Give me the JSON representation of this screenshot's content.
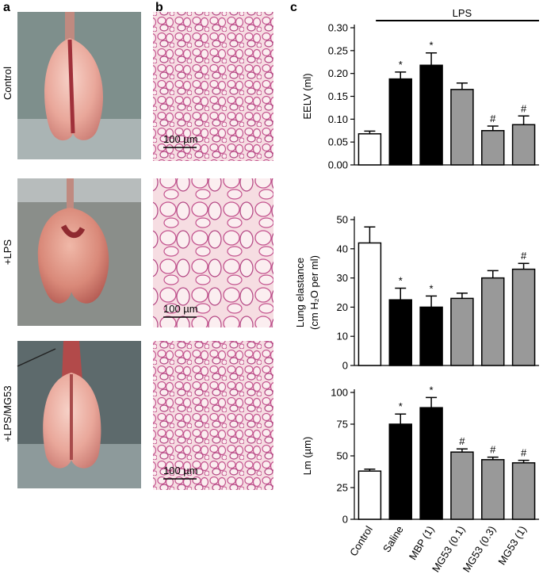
{
  "panel_labels": [
    "a",
    "b",
    "c"
  ],
  "row_labels": [
    "Control",
    "+LPS",
    "+LPS/MG53"
  ],
  "scale_bars": [
    "100 µm",
    "100 µm",
    "100 µm"
  ],
  "chart_data": [
    {
      "type": "bar",
      "annotation": "LPS",
      "y_label": [
        "EELV (ml)"
      ],
      "categories": [
        null,
        null,
        null,
        null,
        null,
        null
      ],
      "values": [
        0.068,
        0.188,
        0.218,
        0.165,
        0.075,
        0.088
      ],
      "errors": [
        0.006,
        0.015,
        0.027,
        0.014,
        0.01,
        0.019
      ],
      "colors": [
        "#ffffff",
        "#000000",
        "#000000",
        "#999999",
        "#999999",
        "#999999"
      ],
      "markers": [
        null,
        "*",
        "*",
        null,
        "#",
        "#"
      ],
      "ylim": [
        0,
        0.3
      ],
      "yticks": [
        {
          "value": 0,
          "label": "0.00"
        },
        0.05,
        {
          "value": 0.1,
          "label": "0.10"
        },
        0.15,
        {
          "value": 0.2,
          "label": "0.20"
        },
        0.25,
        {
          "value": 0.3,
          "label": "0.30"
        }
      ]
    },
    {
      "type": "bar",
      "y_label": [
        "Lung elastance",
        "(cm H₂O per ml)"
      ],
      "categories": [
        null,
        null,
        null,
        null,
        null,
        null
      ],
      "values": [
        42,
        22.5,
        20,
        23,
        30,
        33
      ],
      "errors": [
        5.5,
        4,
        3.8,
        1.8,
        2.5,
        2
      ],
      "colors": [
        "#ffffff",
        "#000000",
        "#000000",
        "#999999",
        "#999999",
        "#999999"
      ],
      "markers": [
        null,
        "*",
        "*",
        null,
        null,
        "#"
      ],
      "ylim": [
        0,
        50
      ],
      "yticks": [
        0,
        10,
        20,
        30,
        40,
        50
      ]
    },
    {
      "type": "bar",
      "y_label": [
        "Lm (µm)"
      ],
      "categories": [
        "Control",
        "Saline",
        "MBP (1)",
        "MG53 (0.1)",
        "MG53 (0.3)",
        "MG53 (1)"
      ],
      "values": [
        38,
        75,
        88,
        53,
        47,
        44.5
      ],
      "errors": [
        1.5,
        8,
        8,
        2.5,
        2,
        2
      ],
      "colors": [
        "#ffffff",
        "#000000",
        "#000000",
        "#999999",
        "#999999",
        "#999999"
      ],
      "markers": [
        null,
        "*",
        "*",
        "#",
        "#",
        "#"
      ],
      "ylim": [
        0,
        100
      ],
      "yticks": [
        0,
        25,
        50,
        75,
        100
      ]
    }
  ]
}
